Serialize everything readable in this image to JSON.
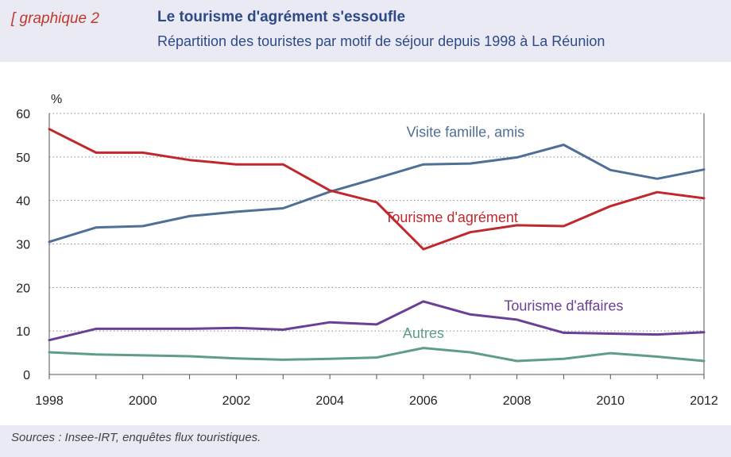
{
  "header": {
    "tag": "[ graphique 2",
    "title": "Le tourisme d'agrément s'essoufle",
    "subtitle": "Répartition des touristes par motif de séjour depuis 1998 à La Réunion"
  },
  "footer": {
    "source": "Sources : Insee-IRT, enquêtes flux touristiques."
  },
  "chart_data": {
    "type": "line",
    "title": "Le tourisme d'agrément s'essoufle",
    "subtitle": "Répartition des touristes par motif de séjour depuis 1998 à La Réunion",
    "ylabel": "%",
    "xlabel": "",
    "xlim": [
      1998,
      2012
    ],
    "ylim": [
      0,
      60
    ],
    "x_ticks": [
      "1998",
      "2000",
      "2002",
      "2004",
      "2006",
      "2008",
      "2010",
      "2012"
    ],
    "y_ticks": [
      "0",
      "10",
      "20",
      "30",
      "40",
      "50",
      "60"
    ],
    "grid": "horizontal dotted",
    "legend": "inline labels",
    "x": [
      1998,
      1999,
      2000,
      2001,
      2002,
      2003,
      2004,
      2005,
      2006,
      2007,
      2008,
      2009,
      2010,
      2011,
      2012
    ],
    "series": [
      {
        "name": "Visite famille, amis",
        "color": "#4f6f96",
        "values": [
          30.5,
          33.8,
          34.1,
          36.4,
          37.4,
          38.2,
          42.0,
          45.1,
          48.3,
          48.5,
          49.9,
          52.8,
          47.0,
          45.0,
          47.1
        ]
      },
      {
        "name": "Tourisme d'agrément",
        "color": "#c0282d",
        "values": [
          56.4,
          51.0,
          51.0,
          49.3,
          48.3,
          48.3,
          42.3,
          39.6,
          28.8,
          32.7,
          34.3,
          34.1,
          38.7,
          41.9,
          40.5
        ]
      },
      {
        "name": "Tourisme d'affaires",
        "color": "#6a3f96",
        "values": [
          7.9,
          10.5,
          10.5,
          10.5,
          10.7,
          10.3,
          12.0,
          11.5,
          16.8,
          13.8,
          12.6,
          9.6,
          9.4,
          9.2,
          9.7
        ]
      },
      {
        "name": "Autres",
        "color": "#5f9e85",
        "values": [
          5.1,
          4.6,
          4.4,
          4.2,
          3.7,
          3.4,
          3.6,
          3.9,
          6.1,
          5.1,
          3.1,
          3.6,
          4.9,
          4.1,
          3.1
        ]
      }
    ]
  }
}
